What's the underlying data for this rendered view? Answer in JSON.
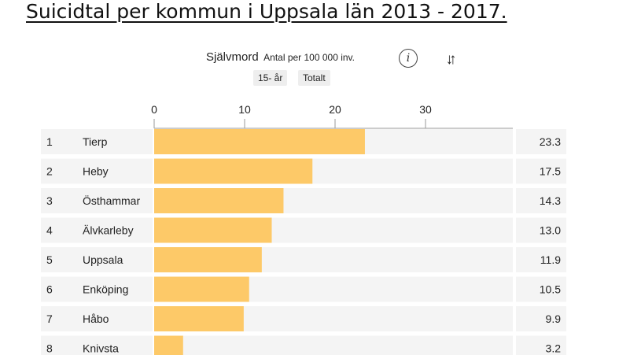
{
  "page_title": "Suicidtal per kommun i Uppsala län 2013 - 2017.",
  "header": {
    "metric": "Självmord",
    "unit": "Antal per 100 000 inv.",
    "info_icon": "i",
    "sort_icon": "↓↑",
    "filters": [
      "15- år",
      "Totalt"
    ]
  },
  "colors": {
    "bar": "#fdc968",
    "row_bg": "#f4f4f4",
    "axis": "#999999"
  },
  "chart_data": {
    "type": "bar",
    "orientation": "horizontal",
    "title": "Självmord Antal per 100 000 inv.",
    "xlim": [
      0,
      40
    ],
    "ticks": [
      0,
      10,
      20,
      30
    ],
    "ranks": [
      "1",
      "2",
      "3",
      "4",
      "5",
      "6",
      "7",
      "8"
    ],
    "categories": [
      "Tierp",
      "Heby",
      "Östhammar",
      "Älvkarleby",
      "Uppsala",
      "Enköping",
      "Håbo",
      "Knivsta"
    ],
    "values": [
      23.3,
      17.5,
      14.3,
      13.0,
      11.9,
      10.5,
      9.9,
      3.2
    ],
    "value_labels": [
      "23.3",
      "17.5",
      "14.3",
      "13.0",
      "11.9",
      "10.5",
      "9.9",
      "3.2"
    ]
  }
}
